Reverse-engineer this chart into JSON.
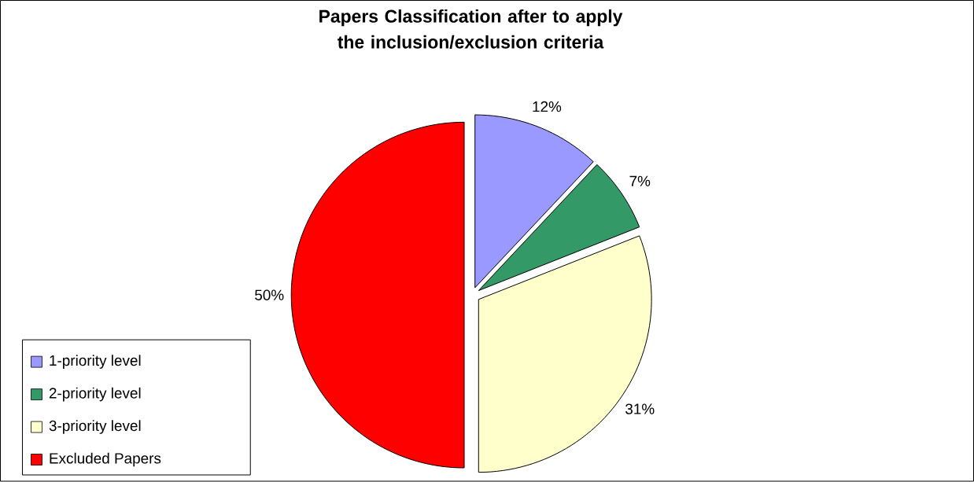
{
  "chart_data": {
    "type": "pie",
    "title": "Papers Classification after to apply the inclusion/exclusion criteria",
    "categories": [
      "1-priority level",
      "2-priority level",
      "3-priority level",
      "Excluded Papers"
    ],
    "values": [
      12,
      7,
      31,
      50
    ],
    "colors": [
      "#9999ff",
      "#339966",
      "#ffffcc",
      "#ff0000"
    ],
    "value_labels": [
      "12%",
      "7%",
      "31%",
      "50%"
    ],
    "legend": "bottom left"
  }
}
